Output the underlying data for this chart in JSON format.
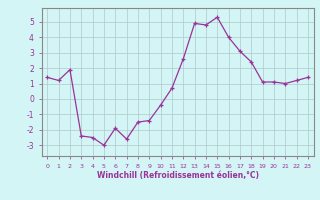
{
  "x": [
    0,
    1,
    2,
    3,
    4,
    5,
    6,
    7,
    8,
    9,
    10,
    11,
    12,
    13,
    14,
    15,
    16,
    17,
    18,
    19,
    20,
    21,
    22,
    23
  ],
  "y": [
    1.4,
    1.2,
    1.9,
    -2.4,
    -2.5,
    -3.0,
    -1.9,
    -2.6,
    -1.5,
    -1.4,
    -0.4,
    0.7,
    2.6,
    4.9,
    4.8,
    5.3,
    4.0,
    3.1,
    2.4,
    1.1,
    1.1,
    1.0,
    1.2,
    1.4
  ],
  "xlim": [
    -0.5,
    23.5
  ],
  "ylim": [
    -3.7,
    5.9
  ],
  "xtick_labels": [
    "0",
    "1",
    "2",
    "3",
    "4",
    "5",
    "6",
    "7",
    "8",
    "9",
    "10",
    "11",
    "12",
    "13",
    "14",
    "15",
    "16",
    "17",
    "18",
    "19",
    "20",
    "21",
    "22",
    "23"
  ],
  "ytick_labels": [
    "-3",
    "-2",
    "-1",
    "0",
    "1",
    "2",
    "3",
    "4",
    "5"
  ],
  "ytick_vals": [
    -3,
    -2,
    -1,
    0,
    1,
    2,
    3,
    4,
    5
  ],
  "xlabel": "Windchill (Refroidissement éolien,°C)",
  "line_color": "#993399",
  "marker": "+",
  "bg_color": "#d4f5f5",
  "grid_color": "#b0c8c8",
  "spine_color": "#888888"
}
